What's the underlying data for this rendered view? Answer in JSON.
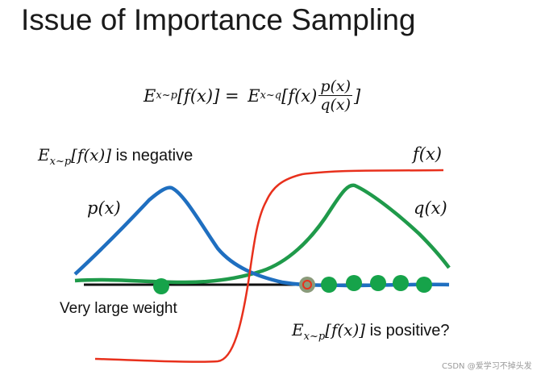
{
  "title": "Issue of Importance Sampling",
  "equation": {
    "lhs_E": "E",
    "lhs_sub": "x~p",
    "lhs_arg": "[f(x)] = ",
    "rhs_E": "E",
    "rhs_sub": "x~q",
    "rhs_arg": "[f(x)",
    "frac_num": "p(x)",
    "frac_den": "q(x)",
    "close": "]"
  },
  "negative_label": {
    "E": "E",
    "sub": "x~p",
    "arg": "[f(x)]",
    "text": " is negative"
  },
  "positive_label": {
    "E": "E",
    "sub": "x~p",
    "arg": "[f(x)]",
    "text": " is positive?"
  },
  "weight_label": "Very large weight",
  "curve_labels": {
    "p": "p(x)",
    "q": "q(x)",
    "f": "f(x)"
  },
  "watermark": "CSDN @爱学习不掉头发",
  "colors": {
    "p": "#1f6fc0",
    "q": "#1f9a4a",
    "f": "#e8301c",
    "axis": "#111111",
    "dot": "#16a34a",
    "marker": "#e8301c"
  }
}
